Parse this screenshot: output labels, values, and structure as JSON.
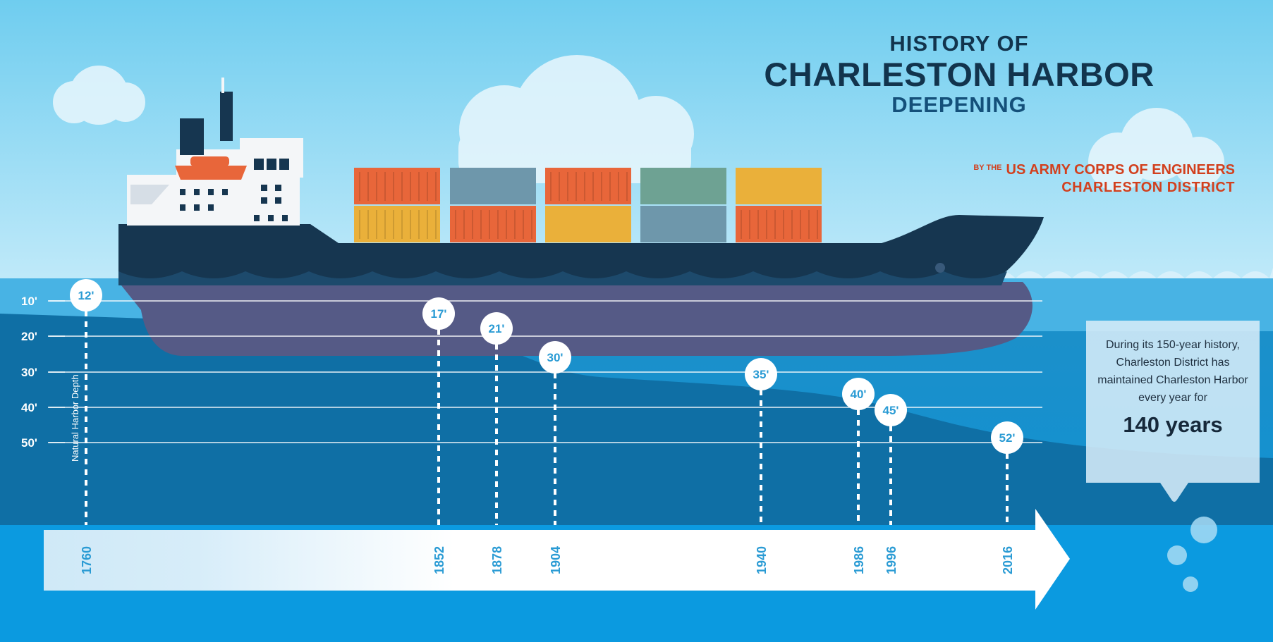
{
  "title": {
    "line1": "HISTORY OF",
    "line2": "CHARLESTON HARBOR",
    "line3": "DEEPENING"
  },
  "byline": {
    "prefix": "BY THE",
    "org": "US ARMY CORPS OF ENGINEERS",
    "district": "CHARLESTON DISTRICT"
  },
  "axis": {
    "label": "Natural Harbor Depth",
    "ticks": [
      "10'",
      "20'",
      "30'",
      "40'",
      "50'"
    ]
  },
  "timeline": [
    {
      "year": "1760",
      "depth": "12'"
    },
    {
      "year": "1852",
      "depth": "17'"
    },
    {
      "year": "1878",
      "depth": "21'"
    },
    {
      "year": "1904",
      "depth": "30'"
    },
    {
      "year": "1940",
      "depth": "35'"
    },
    {
      "year": "1986",
      "depth": "40'"
    },
    {
      "year": "1996",
      "depth": "45'"
    },
    {
      "year": "2016",
      "depth": "52'"
    }
  ],
  "callout": {
    "text": "During its 150-year history, Charleston District has maintained Charleston Harbor every year for",
    "highlight": "140 years"
  },
  "colors": {
    "sky_top": "#6fcdef",
    "sky_bottom": "#b9e6f8",
    "water_surface": "#4fb6e5",
    "water_deep": "#0a7fb8",
    "seabed": "#136a99",
    "hull": "#163650",
    "hull_submerged": "#555a86",
    "label_blue": "#2a9bd4",
    "title_dark": "#12344d",
    "accent_red": "#d2401e"
  }
}
